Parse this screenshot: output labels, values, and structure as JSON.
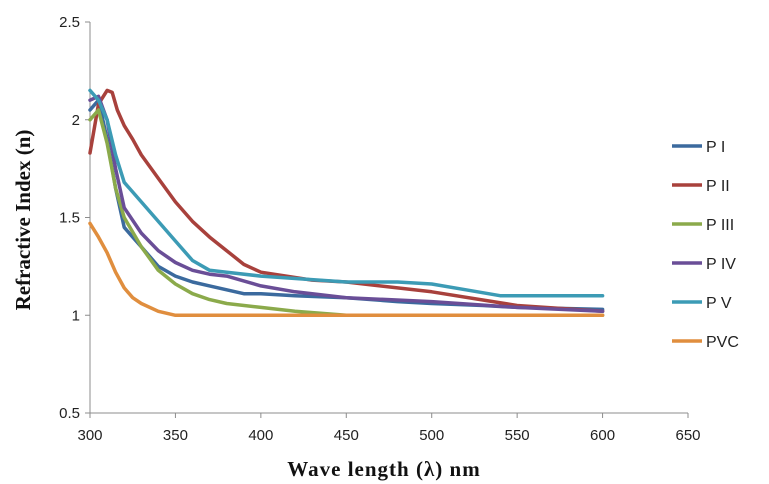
{
  "chart_data": {
    "type": "line",
    "title": "",
    "xlabel": "Wave length (λ) nm",
    "ylabel": "Refractive Index (n)",
    "xlim": [
      300,
      650
    ],
    "ylim": [
      0.5,
      2.5
    ],
    "xticks": [
      300,
      350,
      400,
      450,
      500,
      550,
      600,
      650
    ],
    "yticks": [
      0.5,
      1,
      1.5,
      2,
      2.5
    ],
    "xtick_labels": [
      "300",
      "350",
      "400",
      "450",
      "500",
      "550",
      "600",
      "650"
    ],
    "ytick_labels": [
      "0.5",
      "1",
      "1.5",
      "2",
      "2.5"
    ],
    "grid": false,
    "legend_position": "right",
    "series": [
      {
        "name": "P I",
        "color": "#3B6A9E",
        "x": [
          300,
          305,
          310,
          315,
          320,
          325,
          330,
          340,
          350,
          360,
          370,
          380,
          390,
          400,
          420,
          450,
          480,
          500,
          530,
          550,
          600
        ],
        "y": [
          2.05,
          2.1,
          1.9,
          1.65,
          1.45,
          1.4,
          1.35,
          1.25,
          1.2,
          1.17,
          1.15,
          1.13,
          1.11,
          1.11,
          1.1,
          1.09,
          1.07,
          1.06,
          1.05,
          1.04,
          1.03
        ]
      },
      {
        "name": "P II",
        "color": "#A8413C",
        "x": [
          300,
          305,
          310,
          313,
          316,
          320,
          325,
          330,
          340,
          350,
          360,
          370,
          380,
          390,
          400,
          430,
          450,
          500,
          550,
          600
        ],
        "y": [
          1.83,
          2.08,
          2.15,
          2.14,
          2.05,
          1.97,
          1.9,
          1.82,
          1.7,
          1.58,
          1.48,
          1.4,
          1.33,
          1.26,
          1.22,
          1.18,
          1.17,
          1.12,
          1.05,
          1.02
        ]
      },
      {
        "name": "P III",
        "color": "#8BAA4B",
        "x": [
          300,
          305,
          310,
          315,
          320,
          330,
          340,
          350,
          360,
          370,
          380,
          400,
          420,
          450,
          500,
          600
        ],
        "y": [
          2.0,
          2.05,
          1.88,
          1.65,
          1.5,
          1.35,
          1.23,
          1.16,
          1.11,
          1.08,
          1.06,
          1.04,
          1.02,
          1.0,
          1.0,
          1.0
        ]
      },
      {
        "name": "P IV",
        "color": "#6A4E97",
        "x": [
          300,
          305,
          310,
          315,
          320,
          330,
          340,
          350,
          360,
          370,
          380,
          400,
          420,
          450,
          500,
          550,
          600
        ],
        "y": [
          2.1,
          2.12,
          2.0,
          1.75,
          1.55,
          1.42,
          1.33,
          1.27,
          1.23,
          1.21,
          1.2,
          1.15,
          1.12,
          1.09,
          1.07,
          1.04,
          1.02
        ]
      },
      {
        "name": "P V",
        "color": "#3C9BB5",
        "x": [
          300,
          305,
          310,
          315,
          320,
          330,
          340,
          350,
          360,
          370,
          380,
          400,
          450,
          480,
          500,
          520,
          540,
          550,
          600
        ],
        "y": [
          2.15,
          2.1,
          2.0,
          1.82,
          1.68,
          1.58,
          1.48,
          1.38,
          1.28,
          1.23,
          1.22,
          1.2,
          1.17,
          1.17,
          1.16,
          1.13,
          1.1,
          1.1,
          1.1
        ]
      },
      {
        "name": "PVC",
        "color": "#E08E3E",
        "x": [
          300,
          305,
          310,
          315,
          320,
          325,
          330,
          340,
          350,
          400,
          450,
          500,
          550,
          600
        ],
        "y": [
          1.47,
          1.4,
          1.32,
          1.22,
          1.14,
          1.09,
          1.06,
          1.02,
          1.0,
          1.0,
          1.0,
          1.0,
          1.0,
          1.0
        ]
      }
    ]
  }
}
